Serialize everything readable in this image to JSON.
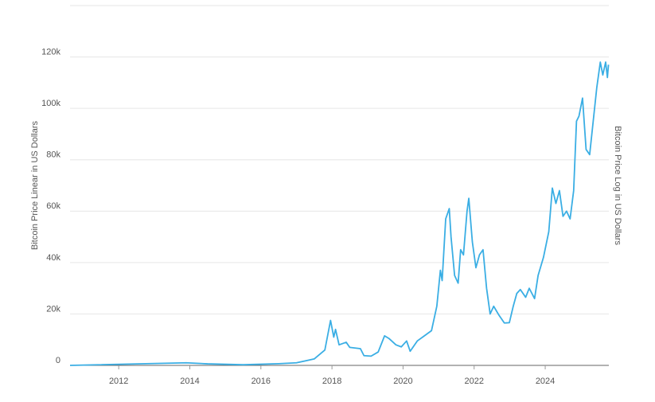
{
  "chart_data": {
    "type": "line",
    "y_label": "Bitcoin Price Linear in US Dollars",
    "y2_label": "Bitcoin Price Log in US Dollars",
    "series": [
      {
        "color": "#3aaee4",
        "x": [
          2010.63,
          2013.9,
          2014.5,
          2015.5,
          2016.5,
          2017.0,
          2017.5,
          2017.8,
          2017.96,
          2018.05,
          2018.1,
          2018.2,
          2018.4,
          2018.5,
          2018.8,
          2018.9,
          2019.1,
          2019.3,
          2019.48,
          2019.6,
          2019.8,
          2019.95,
          2020.1,
          2020.2,
          2020.4,
          2020.6,
          2020.8,
          2020.95,
          2021.05,
          2021.1,
          2021.2,
          2021.3,
          2021.35,
          2021.45,
          2021.55,
          2021.62,
          2021.7,
          2021.8,
          2021.85,
          2021.95,
          2022.05,
          2022.15,
          2022.25,
          2022.35,
          2022.45,
          2022.55,
          2022.7,
          2022.85,
          2022.99,
          2023.1,
          2023.2,
          2023.3,
          2023.45,
          2023.55,
          2023.7,
          2023.8,
          2023.95,
          2024.1,
          2024.2,
          2024.3,
          2024.4,
          2024.5,
          2024.6,
          2024.7,
          2024.8,
          2024.88,
          2024.95,
          2025.05,
          2025.15,
          2025.25,
          2025.35,
          2025.45,
          2025.55,
          2025.62,
          2025.7,
          2025.75,
          2025.78
        ],
        "values": [
          0,
          1000,
          600,
          250,
          650,
          1000,
          2500,
          6000,
          17500,
          11000,
          14000,
          8000,
          9000,
          7000,
          6500,
          3800,
          3600,
          5200,
          11500,
          10500,
          8000,
          7200,
          9500,
          5500,
          9500,
          11500,
          13500,
          23000,
          37000,
          33000,
          57000,
          61000,
          50000,
          35000,
          32000,
          45000,
          43000,
          60000,
          65000,
          48000,
          38000,
          43000,
          45000,
          30000,
          20000,
          23000,
          19500,
          16500,
          16600,
          23000,
          28000,
          29500,
          26500,
          30000,
          26000,
          35000,
          42000,
          52000,
          69000,
          63000,
          68000,
          58000,
          60000,
          57000,
          68000,
          95000,
          97000,
          104000,
          84000,
          82000,
          95000,
          108000,
          118000,
          113000,
          118000,
          112000,
          117000
        ]
      }
    ],
    "xlim": [
      2010.63,
      2025.79
    ],
    "xticks": [
      2012,
      2014,
      2016,
      2018,
      2020,
      2022,
      2024
    ],
    "ylim": [
      0,
      140000
    ],
    "yticks": [
      0,
      {
        "value": 20000,
        "label": "20k"
      },
      {
        "value": 40000,
        "label": "40k"
      },
      {
        "value": 60000,
        "label": "60k"
      },
      {
        "value": 80000,
        "label": "80k"
      },
      {
        "value": 100000,
        "label": "100k"
      },
      {
        "value": 120000,
        "label": "120k"
      }
    ],
    "grid": true
  }
}
